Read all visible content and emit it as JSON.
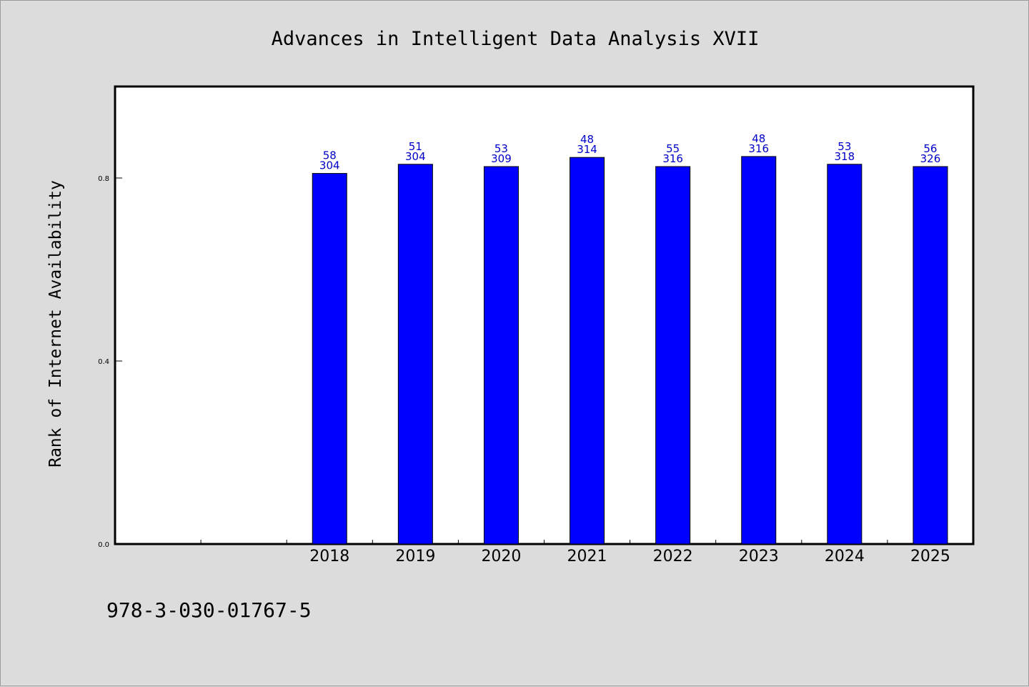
{
  "chart_data": {
    "type": "bar",
    "title": "Advances in Intelligent Data Analysis XVII",
    "xlabel": "",
    "ylabel": "Rank of Internet Availability",
    "categories": [
      "",
      "",
      "2018",
      "2019",
      "2020",
      "2021",
      "2022",
      "2023",
      "2024",
      "2025"
    ],
    "values": [
      null,
      null,
      0.81,
      0.83,
      0.825,
      0.845,
      0.825,
      0.847,
      0.83,
      0.825
    ],
    "labels_top": [
      "",
      "",
      "58",
      "51",
      "53",
      "48",
      "55",
      "48",
      "53",
      "56"
    ],
    "labels_bottom": [
      "",
      "",
      "304",
      "304",
      "309",
      "314",
      "316",
      "316",
      "318",
      "326"
    ],
    "ylim": [
      0,
      1.0
    ],
    "yticks": [
      0.0,
      0.4,
      0.8
    ],
    "ytick_labels": [
      "0.0",
      "0.4",
      "0.8"
    ],
    "bar_color": "#0000ff",
    "label_color": "#0000c8",
    "grid": false,
    "legend": "none"
  },
  "footer": "978-3-030-01767-5"
}
